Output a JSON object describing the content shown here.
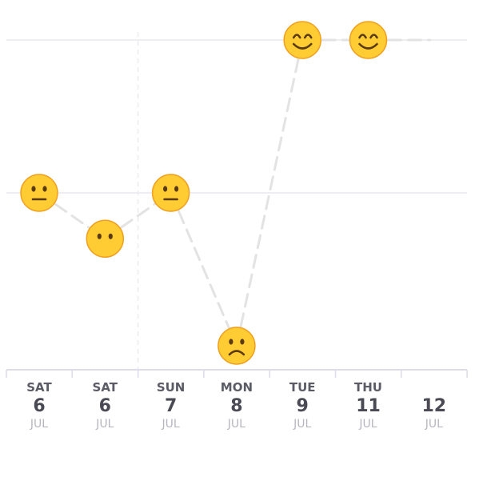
{
  "chart_data": {
    "type": "line",
    "y_levels": [
      "sad",
      "neutral",
      "happy"
    ],
    "columns": [
      {
        "weekday": "SAT",
        "day": "6",
        "month": "JUL"
      },
      {
        "weekday": "SAT",
        "day": "6",
        "month": "JUL"
      },
      {
        "weekday": "SUN",
        "day": "7",
        "month": "JUL"
      },
      {
        "weekday": "MON",
        "day": "8",
        "month": "JUL"
      },
      {
        "weekday": "TUE",
        "day": "9",
        "month": "JUL"
      },
      {
        "weekday": "THU",
        "day": "11",
        "month": "JUL"
      },
      {
        "weekday": "",
        "day": "12",
        "month": "JUL"
      }
    ],
    "points": [
      {
        "col": 0,
        "mood": 2.0,
        "face": "neutral"
      },
      {
        "col": 1,
        "mood": 1.7,
        "face": "blank"
      },
      {
        "col": 2,
        "mood": 2.0,
        "face": "neutral"
      },
      {
        "col": 3,
        "mood": 1.0,
        "face": "sad"
      },
      {
        "col": 4,
        "mood": 3.0,
        "face": "happy"
      },
      {
        "col": 5,
        "mood": 3.0,
        "face": "happy"
      }
    ],
    "ylim": [
      1,
      3
    ],
    "grid": true,
    "colors": {
      "line": "#e3e3e3",
      "grid": "#eeeef2",
      "axis": "#dcdcea",
      "face_fill": "#ffcc33",
      "face_edge": "#f0a020",
      "face_features": "#5a3a10"
    }
  }
}
